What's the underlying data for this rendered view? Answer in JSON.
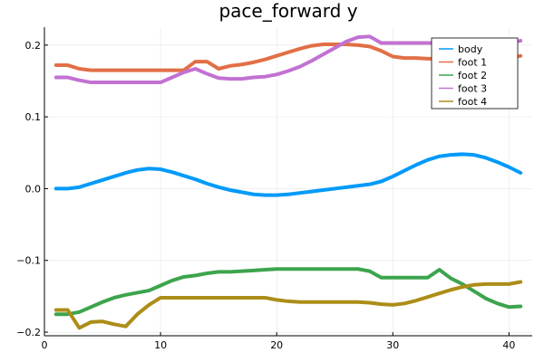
{
  "chart_data": {
    "type": "line",
    "title": "pace_forward y",
    "xlabel": "",
    "ylabel": "",
    "xlim": [
      0,
      42
    ],
    "ylim": [
      -0.205,
      0.225
    ],
    "xticks": [
      0,
      10,
      20,
      30,
      40
    ],
    "xtick_labels": [
      "0",
      "10",
      "20",
      "30",
      "40"
    ],
    "yticks": [
      -0.2,
      -0.1,
      0.0,
      0.1,
      0.2
    ],
    "ytick_labels": [
      "−0.2",
      "−0.1",
      "0.0",
      "0.1",
      "0.2"
    ],
    "grid": true,
    "legend": "top-right",
    "x": [
      1,
      2,
      3,
      4,
      5,
      6,
      7,
      8,
      9,
      10,
      11,
      12,
      13,
      14,
      15,
      16,
      17,
      18,
      19,
      20,
      21,
      22,
      23,
      24,
      25,
      26,
      27,
      28,
      29,
      30,
      31,
      32,
      33,
      34,
      35,
      36,
      37,
      38,
      39,
      40,
      41
    ],
    "series": [
      {
        "name": "body",
        "color": "#009af9",
        "values": [
          0.0,
          0.0,
          0.002,
          0.007,
          0.012,
          0.017,
          0.022,
          0.026,
          0.028,
          0.027,
          0.023,
          0.018,
          0.013,
          0.007,
          0.002,
          -0.002,
          -0.005,
          -0.008,
          -0.009,
          -0.009,
          -0.008,
          -0.006,
          -0.004,
          -0.002,
          0.0,
          0.002,
          0.004,
          0.006,
          0.01,
          0.017,
          0.025,
          0.033,
          0.04,
          0.045,
          0.047,
          0.048,
          0.047,
          0.043,
          0.037,
          0.03,
          0.022
        ]
      },
      {
        "name": "foot 1",
        "color": "#e26f46",
        "values": [
          0.172,
          0.172,
          0.167,
          0.165,
          0.165,
          0.165,
          0.165,
          0.165,
          0.165,
          0.165,
          0.165,
          0.165,
          0.177,
          0.177,
          0.167,
          0.171,
          0.173,
          0.176,
          0.18,
          0.185,
          0.19,
          0.195,
          0.199,
          0.201,
          0.201,
          0.201,
          0.2,
          0.198,
          0.192,
          0.184,
          0.182,
          0.182,
          0.181,
          0.181,
          0.181,
          0.181,
          0.181,
          0.181,
          0.181,
          0.182,
          0.185
        ]
      },
      {
        "name": "foot 2",
        "color": "#3da44d",
        "values": [
          -0.175,
          -0.175,
          -0.172,
          -0.165,
          -0.158,
          -0.152,
          -0.148,
          -0.145,
          -0.142,
          -0.135,
          -0.128,
          -0.123,
          -0.121,
          -0.118,
          -0.116,
          -0.116,
          -0.115,
          -0.114,
          -0.113,
          -0.112,
          -0.112,
          -0.112,
          -0.112,
          -0.112,
          -0.112,
          -0.112,
          -0.112,
          -0.115,
          -0.124,
          -0.124,
          -0.124,
          -0.124,
          -0.124,
          -0.113,
          -0.125,
          -0.133,
          -0.143,
          -0.153,
          -0.16,
          -0.165,
          -0.164
        ]
      },
      {
        "name": "foot 3",
        "color": "#c271d2",
        "values": [
          0.155,
          0.155,
          0.151,
          0.148,
          0.148,
          0.148,
          0.148,
          0.148,
          0.148,
          0.148,
          0.155,
          0.162,
          0.167,
          0.16,
          0.154,
          0.153,
          0.153,
          0.155,
          0.156,
          0.159,
          0.164,
          0.17,
          0.178,
          0.187,
          0.196,
          0.205,
          0.211,
          0.212,
          0.203,
          0.203,
          0.203,
          0.203,
          0.203,
          0.203,
          0.203,
          0.203,
          0.203,
          0.203,
          0.203,
          0.203,
          0.206
        ]
      },
      {
        "name": "foot 4",
        "color": "#ac8d18",
        "values": [
          -0.169,
          -0.169,
          -0.194,
          -0.186,
          -0.185,
          -0.189,
          -0.192,
          -0.175,
          -0.162,
          -0.152,
          -0.152,
          -0.152,
          -0.152,
          -0.152,
          -0.152,
          -0.152,
          -0.152,
          -0.152,
          -0.152,
          -0.155,
          -0.157,
          -0.158,
          -0.158,
          -0.158,
          -0.158,
          -0.158,
          -0.158,
          -0.159,
          -0.161,
          -0.162,
          -0.16,
          -0.156,
          -0.151,
          -0.146,
          -0.141,
          -0.137,
          -0.134,
          -0.133,
          -0.133,
          -0.133,
          -0.13
        ]
      }
    ]
  }
}
